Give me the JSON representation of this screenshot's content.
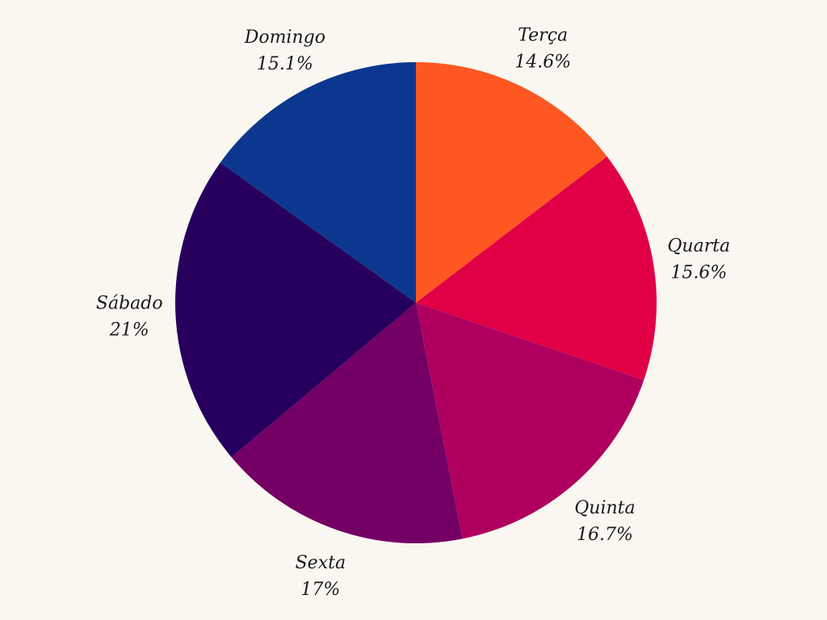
{
  "chart_data": {
    "type": "pie",
    "title": "",
    "start_angle_deg": 0,
    "direction": "clockwise",
    "slices": [
      {
        "label": "Terça",
        "value": 14.6,
        "value_label": "14.6%",
        "color": "#fe5722"
      },
      {
        "label": "Quarta",
        "value": 15.6,
        "value_label": "15.6%",
        "color": "#e10045"
      },
      {
        "label": "Quinta",
        "value": 16.7,
        "value_label": "16.7%",
        "color": "#b0005f"
      },
      {
        "label": "Sexta",
        "value": 17.0,
        "value_label": "17%",
        "color": "#740066"
      },
      {
        "label": "Sábado",
        "value": 21.0,
        "value_label": "21%",
        "color": "#27005e"
      },
      {
        "label": "Domingo",
        "value": 15.1,
        "value_label": "15.1%",
        "color": "#0b388e"
      }
    ]
  }
}
